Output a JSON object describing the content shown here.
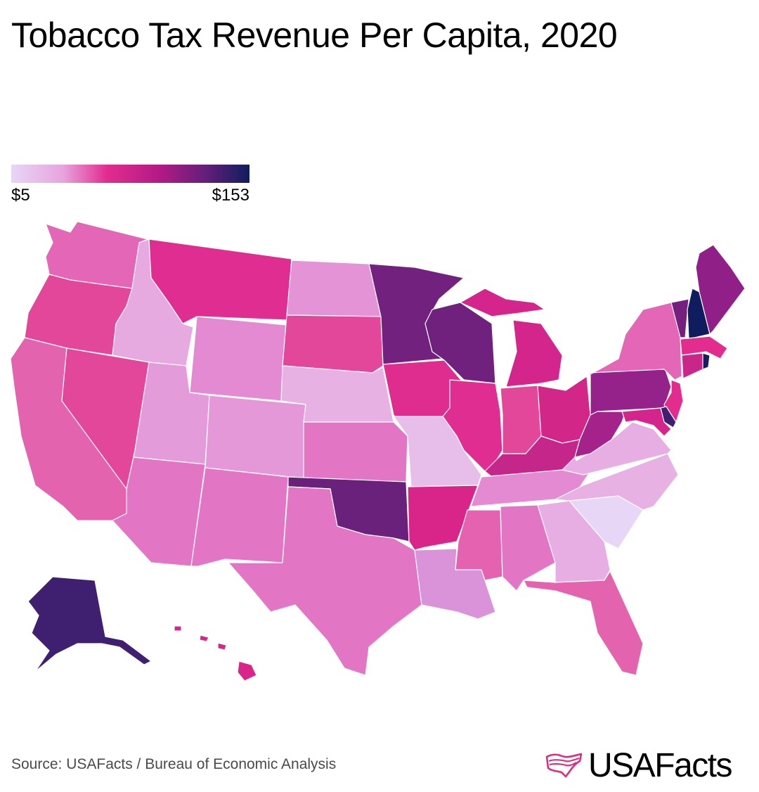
{
  "title": "Tobacco Tax Revenue Per Capita, 2020",
  "legend": {
    "min_label": "$5",
    "max_label": "$153",
    "min_value": 5,
    "max_value": 153
  },
  "source": "Source: USAFacts / Bureau of Economic Analysis",
  "brand": {
    "name": "USAFacts",
    "accent_color": "#e0277f"
  },
  "colors": {
    "scale": [
      "#e8d6f7",
      "#e7a3dd",
      "#e22d8e",
      "#b41a86",
      "#611f7a",
      "#0f1d5e"
    ]
  },
  "states": [
    {
      "name": "WA",
      "level": "#e367b6"
    },
    {
      "name": "OR",
      "level": "#e24799"
    },
    {
      "name": "CA",
      "level": "#e363ae"
    },
    {
      "name": "NV",
      "level": "#e24799"
    },
    {
      "name": "ID",
      "level": "#e6a9e0"
    },
    {
      "name": "MT",
      "level": "#df2d91"
    },
    {
      "name": "WY",
      "level": "#e38ad3"
    },
    {
      "name": "UT",
      "level": "#e49bd9"
    },
    {
      "name": "AZ",
      "level": "#e276c4"
    },
    {
      "name": "CO",
      "level": "#e498d8"
    },
    {
      "name": "NM",
      "level": "#e276c4"
    },
    {
      "name": "ND",
      "level": "#e493d6"
    },
    {
      "name": "SD",
      "level": "#e24799"
    },
    {
      "name": "NE",
      "level": "#e7b1e4"
    },
    {
      "name": "KS",
      "level": "#e276c4"
    },
    {
      "name": "OK",
      "level": "#6a217c"
    },
    {
      "name": "TX",
      "level": "#e276c4"
    },
    {
      "name": "MN",
      "level": "#72217e"
    },
    {
      "name": "IA",
      "level": "#de2d8f"
    },
    {
      "name": "MO",
      "level": "#e7bdea"
    },
    {
      "name": "AR",
      "level": "#d9258a"
    },
    {
      "name": "LA",
      "level": "#da92d8"
    },
    {
      "name": "WI",
      "level": "#6f217d"
    },
    {
      "name": "IL",
      "level": "#df2d91"
    },
    {
      "name": "MI",
      "level": "#d3258b"
    },
    {
      "name": "IN",
      "level": "#e24799"
    },
    {
      "name": "OH",
      "level": "#d22689"
    },
    {
      "name": "KY",
      "level": "#c5268a"
    },
    {
      "name": "TN",
      "level": "#e38ad3"
    },
    {
      "name": "MS",
      "level": "#e462b0"
    },
    {
      "name": "AL",
      "level": "#e276c4"
    },
    {
      "name": "GA",
      "level": "#e7aee3"
    },
    {
      "name": "FL",
      "level": "#e363ae"
    },
    {
      "name": "SC",
      "level": "#e8d6f7"
    },
    {
      "name": "NC",
      "level": "#e7b1e4"
    },
    {
      "name": "VA",
      "level": "#e7aee3"
    },
    {
      "name": "WV",
      "level": "#a4228a"
    },
    {
      "name": "PA",
      "level": "#95218a"
    },
    {
      "name": "NY",
      "level": "#e367b6"
    },
    {
      "name": "VT",
      "level": "#75207e"
    },
    {
      "name": "NH",
      "level": "#0f1d5e"
    },
    {
      "name": "ME",
      "level": "#911f88"
    },
    {
      "name": "MA",
      "level": "#e22d8e"
    },
    {
      "name": "CT",
      "level": "#c9268a"
    },
    {
      "name": "RI",
      "level": "#1b1d62"
    },
    {
      "name": "NJ",
      "level": "#e22d8e"
    },
    {
      "name": "DE",
      "level": "#3e1f70"
    },
    {
      "name": "MD",
      "level": "#d3258b"
    },
    {
      "name": "AK",
      "level": "#3e1f70"
    },
    {
      "name": "HI",
      "level": "#d9258a"
    }
  ]
}
